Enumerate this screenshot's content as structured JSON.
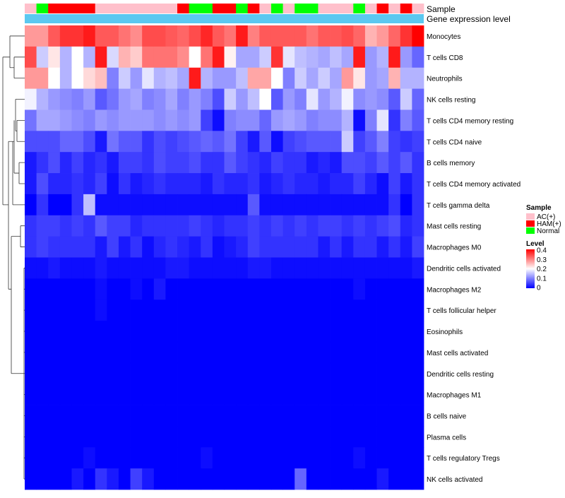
{
  "chart_data": {
    "type": "heatmap",
    "title": "",
    "annotation_labels": {
      "sample": "Sample",
      "expression": "Gene expression level"
    },
    "sample_groups": [
      "AC(+)",
      "Normal",
      "HAM(+)",
      "HAM(+)",
      "HAM(+)",
      "HAM(+)",
      "AC(+)",
      "AC(+)",
      "AC(+)",
      "AC(+)",
      "AC(+)",
      "AC(+)",
      "AC(+)",
      "HAM(+)",
      "Normal",
      "Normal",
      "HAM(+)",
      "HAM(+)",
      "Normal",
      "HAM(+)",
      "AC(+)",
      "Normal",
      "AC(+)",
      "Normal",
      "Normal",
      "AC(+)",
      "AC(+)",
      "AC(+)",
      "Normal",
      "AC(+)",
      "HAM(+)",
      "AC(+)",
      "HAM(+)",
      "AC(+)"
    ],
    "rows": [
      "Monocytes",
      "T cells CD8",
      "Neutrophils",
      "NK cells resting",
      "T cells CD4 memory resting",
      "T cells CD4 naive",
      "B cells memory",
      "T cells CD4 memory activated",
      "T cells gamma delta",
      "Mast cells resting",
      "Macrophages M0",
      "Dendritic cells activated",
      "Macrophages M2",
      "T cells follicular helper",
      "Eosinophils",
      "Mast cells activated",
      "Dendritic cells resting",
      "Macrophages M1",
      "B cells naive",
      "Plasma cells",
      "T cells regulatory  Tregs",
      "NK cells activated"
    ],
    "values": [
      [
        0.28,
        0.28,
        0.33,
        0.36,
        0.36,
        0.38,
        0.33,
        0.33,
        0.31,
        0.29,
        0.34,
        0.34,
        0.33,
        0.32,
        0.34,
        0.37,
        0.33,
        0.31,
        0.38,
        0.3,
        0.33,
        0.33,
        0.33,
        0.33,
        0.31,
        0.33,
        0.33,
        0.34,
        0.32,
        0.26,
        0.28,
        0.32,
        0.36,
        0.4
      ],
      [
        0.34,
        0.16,
        0.22,
        0.14,
        0.2,
        0.14,
        0.38,
        0.17,
        0.26,
        0.24,
        0.31,
        0.31,
        0.31,
        0.29,
        0.2,
        0.31,
        0.38,
        0.21,
        0.13,
        0.13,
        0.16,
        0.36,
        0.18,
        0.15,
        0.14,
        0.13,
        0.15,
        0.13,
        0.38,
        0.12,
        0.14,
        0.38,
        0.12,
        0.08
      ],
      [
        0.28,
        0.28,
        0.2,
        0.14,
        0.2,
        0.23,
        0.25,
        0.1,
        0.16,
        0.12,
        0.18,
        0.14,
        0.15,
        0.13,
        0.38,
        0.14,
        0.12,
        0.12,
        0.15,
        0.27,
        0.27,
        0.2,
        0.1,
        0.16,
        0.13,
        0.16,
        0.13,
        0.28,
        0.22,
        0.12,
        0.13,
        0.26,
        0.14,
        0.14
      ],
      [
        0.19,
        0.14,
        0.12,
        0.11,
        0.1,
        0.12,
        0.07,
        0.09,
        0.12,
        0.13,
        0.1,
        0.11,
        0.13,
        0.1,
        0.12,
        0.1,
        0.06,
        0.16,
        0.12,
        0.15,
        0.2,
        0.07,
        0.12,
        0.1,
        0.18,
        0.12,
        0.14,
        0.19,
        0.11,
        0.12,
        0.11,
        0.07,
        0.16,
        0.08
      ],
      [
        0.09,
        0.13,
        0.13,
        0.12,
        0.11,
        0.1,
        0.12,
        0.11,
        0.12,
        0.12,
        0.12,
        0.11,
        0.12,
        0.11,
        0.12,
        0.05,
        0.01,
        0.1,
        0.11,
        0.11,
        0.08,
        0.12,
        0.13,
        0.12,
        0.1,
        0.11,
        0.11,
        0.14,
        0.01,
        0.1,
        0.18,
        0.04,
        0.1,
        0.07
      ],
      [
        0.06,
        0.06,
        0.06,
        0.08,
        0.08,
        0.06,
        0.02,
        0.09,
        0.07,
        0.07,
        0.04,
        0.06,
        0.05,
        0.06,
        0.07,
        0.08,
        0.07,
        0.09,
        0.05,
        0.02,
        0.07,
        0.01,
        0.05,
        0.06,
        0.07,
        0.07,
        0.07,
        0.16,
        0.05,
        0.07,
        0.1,
        0.05,
        0.04,
        0.05
      ],
      [
        0.02,
        0.04,
        0.06,
        0.03,
        0.05,
        0.03,
        0.04,
        0.02,
        0.05,
        0.05,
        0.04,
        0.06,
        0.05,
        0.05,
        0.06,
        0.04,
        0.04,
        0.07,
        0.05,
        0.04,
        0.03,
        0.05,
        0.04,
        0.04,
        0.02,
        0.03,
        0.02,
        0.06,
        0.06,
        0.05,
        0.07,
        0.05,
        0.07,
        0.04
      ],
      [
        0.02,
        0.06,
        0.03,
        0.03,
        0.04,
        0.03,
        0.05,
        0.01,
        0.04,
        0.02,
        0.03,
        0.04,
        0.03,
        0.03,
        0.03,
        0.02,
        0.04,
        0.03,
        0.03,
        0.04,
        0.02,
        0.03,
        0.04,
        0.03,
        0.03,
        0.02,
        0.03,
        0.03,
        0.05,
        0.03,
        0.01,
        0.05,
        0.02,
        0.04
      ],
      [
        0.0,
        0.04,
        0.0,
        0.0,
        0.04,
        0.15,
        0.01,
        0.01,
        0.01,
        0.01,
        0.01,
        0.01,
        0.01,
        0.01,
        0.01,
        0.01,
        0.01,
        0.01,
        0.01,
        0.07,
        0.01,
        0.01,
        0.01,
        0.01,
        0.01,
        0.01,
        0.01,
        0.01,
        0.01,
        0.01,
        0.01,
        0.04,
        0.0,
        0.04
      ],
      [
        0.04,
        0.05,
        0.05,
        0.04,
        0.05,
        0.04,
        0.07,
        0.05,
        0.05,
        0.03,
        0.04,
        0.04,
        0.04,
        0.04,
        0.05,
        0.04,
        0.03,
        0.04,
        0.04,
        0.05,
        0.04,
        0.05,
        0.04,
        0.05,
        0.04,
        0.05,
        0.05,
        0.04,
        0.05,
        0.04,
        0.05,
        0.06,
        0.03,
        0.04
      ],
      [
        0.04,
        0.05,
        0.04,
        0.04,
        0.04,
        0.04,
        0.02,
        0.05,
        0.02,
        0.04,
        0.01,
        0.03,
        0.04,
        0.03,
        0.02,
        0.04,
        0.01,
        0.02,
        0.03,
        0.05,
        0.04,
        0.04,
        0.04,
        0.04,
        0.04,
        0.02,
        0.04,
        0.02,
        0.04,
        0.04,
        0.02,
        0.04,
        0.02,
        0.05
      ],
      [
        0.01,
        0.01,
        0.02,
        0.01,
        0.01,
        0.01,
        0.02,
        0.01,
        0.01,
        0.01,
        0.01,
        0.01,
        0.02,
        0.02,
        0.01,
        0.01,
        0.01,
        0.01,
        0.01,
        0.02,
        0.02,
        0.01,
        0.01,
        0.01,
        0.01,
        0.01,
        0.01,
        0.01,
        0.01,
        0.01,
        0.01,
        0.01,
        0.01,
        0.02
      ],
      [
        0.0,
        0.0,
        0.0,
        0.0,
        0.0,
        0.0,
        0.01,
        0.0,
        0.0,
        0.01,
        0.0,
        0.02,
        0.0,
        0.0,
        0.0,
        0.0,
        0.0,
        0.0,
        0.0,
        0.0,
        0.0,
        0.0,
        0.0,
        0.0,
        0.0,
        0.0,
        0.0,
        0.0,
        0.01,
        0.0,
        0.0,
        0.0,
        0.0,
        0.0
      ],
      [
        0.0,
        0.0,
        0.0,
        0.0,
        0.0,
        0.0,
        0.01,
        0.0,
        0.0,
        0.0,
        0.0,
        0.0,
        0.0,
        0.0,
        0.0,
        0.0,
        0.0,
        0.0,
        0.0,
        0.0,
        0.0,
        0.0,
        0.0,
        0.0,
        0.0,
        0.0,
        0.0,
        0.0,
        0.0,
        0.0,
        0.0,
        0.0,
        0.0,
        0.0
      ],
      [
        0.0,
        0.0,
        0.0,
        0.0,
        0.0,
        0.0,
        0.0,
        0.0,
        0.0,
        0.0,
        0.0,
        0.0,
        0.0,
        0.0,
        0.0,
        0.0,
        0.0,
        0.0,
        0.0,
        0.0,
        0.0,
        0.0,
        0.0,
        0.0,
        0.0,
        0.0,
        0.0,
        0.0,
        0.0,
        0.0,
        0.0,
        0.0,
        0.0,
        0.0
      ],
      [
        0.0,
        0.0,
        0.0,
        0.0,
        0.0,
        0.0,
        0.0,
        0.0,
        0.0,
        0.0,
        0.0,
        0.0,
        0.0,
        0.0,
        0.0,
        0.0,
        0.0,
        0.0,
        0.0,
        0.0,
        0.0,
        0.0,
        0.0,
        0.0,
        0.0,
        0.0,
        0.0,
        0.0,
        0.0,
        0.0,
        0.0,
        0.0,
        0.0,
        0.0
      ],
      [
        0.0,
        0.0,
        0.0,
        0.0,
        0.0,
        0.0,
        0.0,
        0.0,
        0.0,
        0.0,
        0.0,
        0.0,
        0.0,
        0.0,
        0.0,
        0.0,
        0.0,
        0.0,
        0.0,
        0.0,
        0.0,
        0.0,
        0.0,
        0.0,
        0.0,
        0.0,
        0.0,
        0.0,
        0.0,
        0.0,
        0.0,
        0.0,
        0.0,
        0.0
      ],
      [
        0.0,
        0.0,
        0.0,
        0.0,
        0.0,
        0.0,
        0.0,
        0.0,
        0.0,
        0.0,
        0.0,
        0.0,
        0.0,
        0.0,
        0.0,
        0.0,
        0.0,
        0.0,
        0.0,
        0.0,
        0.0,
        0.0,
        0.0,
        0.0,
        0.0,
        0.0,
        0.0,
        0.0,
        0.0,
        0.0,
        0.0,
        0.0,
        0.0,
        0.0
      ],
      [
        0.0,
        0.0,
        0.0,
        0.0,
        0.0,
        0.0,
        0.0,
        0.0,
        0.0,
        0.0,
        0.0,
        0.0,
        0.0,
        0.0,
        0.0,
        0.0,
        0.0,
        0.0,
        0.0,
        0.0,
        0.0,
        0.0,
        0.0,
        0.0,
        0.0,
        0.0,
        0.0,
        0.0,
        0.0,
        0.0,
        0.0,
        0.0,
        0.0,
        0.0
      ],
      [
        0.0,
        0.0,
        0.0,
        0.0,
        0.0,
        0.0,
        0.0,
        0.0,
        0.0,
        0.0,
        0.0,
        0.0,
        0.0,
        0.0,
        0.0,
        0.0,
        0.0,
        0.0,
        0.0,
        0.0,
        0.0,
        0.0,
        0.0,
        0.0,
        0.0,
        0.0,
        0.0,
        0.0,
        0.0,
        0.0,
        0.0,
        0.0,
        0.0,
        0.0
      ],
      [
        0.0,
        0.0,
        0.0,
        0.0,
        0.0,
        0.01,
        0.0,
        0.0,
        0.0,
        0.0,
        0.0,
        0.0,
        0.0,
        0.0,
        0.0,
        0.01,
        0.0,
        0.0,
        0.0,
        0.0,
        0.0,
        0.0,
        0.0,
        0.0,
        0.0,
        0.0,
        0.0,
        0.0,
        0.01,
        0.0,
        0.0,
        0.0,
        0.0,
        0.0
      ],
      [
        0.0,
        0.0,
        0.0,
        0.0,
        0.02,
        0.0,
        0.04,
        0.02,
        0.0,
        0.05,
        0.02,
        0.0,
        0.0,
        0.0,
        0.0,
        0.0,
        0.0,
        0.0,
        0.0,
        0.0,
        0.0,
        0.0,
        0.0,
        0.08,
        0.0,
        0.0,
        0.0,
        0.0,
        0.0,
        0.0,
        0.02,
        0.0,
        0.0,
        0.0
      ]
    ],
    "color_scale": {
      "min": 0,
      "max": 0.4,
      "low_color": "#0000ff",
      "mid_color": "#ffffff",
      "high_color": "#ff0000",
      "mid_value": 0.2
    },
    "legend": {
      "sample_title": "Sample",
      "sample_entries": [
        {
          "label": "AC(+)",
          "color": "#ffc0cb"
        },
        {
          "label": "HAM(+)",
          "color": "#ff0000"
        },
        {
          "label": "Normal",
          "color": "#00ff00"
        }
      ],
      "level_title": "Level",
      "level_ticks": [
        "0.4",
        "0.3",
        "0.2",
        "0.1",
        "0"
      ],
      "placement": "right"
    },
    "expression_bar_color": "#5bc8f0"
  }
}
